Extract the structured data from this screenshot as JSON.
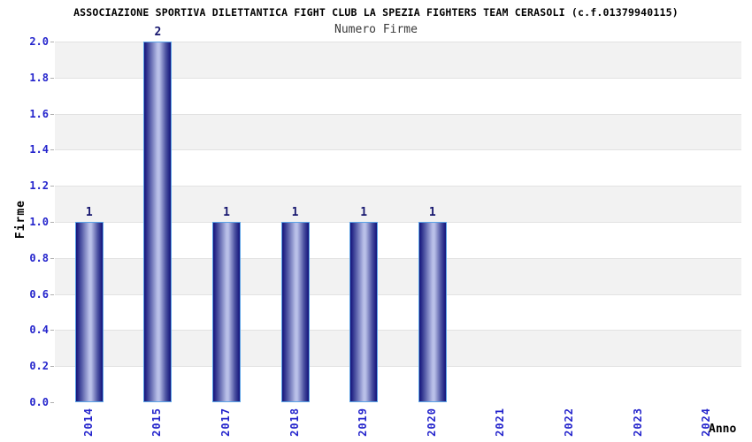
{
  "header": {
    "title": "ASSOCIAZIONE SPORTIVA DILETTANTICA FIGHT CLUB LA SPEZIA FIGHTERS TEAM CERASOLI (c.f.01379940115)",
    "subtitle": "Numero Firme"
  },
  "chart_data": {
    "type": "bar",
    "title": "Numero Firme",
    "categories": [
      "2014",
      "2015",
      "2017",
      "2018",
      "2019",
      "2020",
      "2021",
      "2022",
      "2023",
      "2024"
    ],
    "values": [
      1,
      2,
      1,
      1,
      1,
      1,
      0,
      0,
      0,
      0
    ],
    "bar_value_labels": [
      "1",
      "2",
      "1",
      "1",
      "1",
      "1",
      "",
      "",
      "",
      ""
    ],
    "xlabel": "Anno",
    "ylabel": "Firme",
    "ylim": [
      0.0,
      2.0
    ],
    "ytick_step": 0.2,
    "yticks": [
      "2.0",
      "1.8",
      "1.6",
      "1.4",
      "1.2",
      "1.0",
      "0.8",
      "0.6",
      "0.4",
      "0.2",
      "0.0"
    ],
    "grid": "alternating horizontal bands, gray topmost",
    "legend_position": "none"
  },
  "colors": {
    "title": "#000000",
    "subtitle": "#3a3a3a",
    "tick_label_blue": "#2424cc",
    "value_label": "#16166e",
    "bar_edge_dark": "#12127a",
    "bar_mid": "#4a50a0",
    "bar_center_light": "#b9c0e8",
    "bar_border": "#5aa2e6",
    "band_gray": "#f2f2f2",
    "band_line": "#e2e2e2",
    "axis_line": "#c4c4c4",
    "tick_mark": "#b0b0b0",
    "background": "#ffffff"
  }
}
